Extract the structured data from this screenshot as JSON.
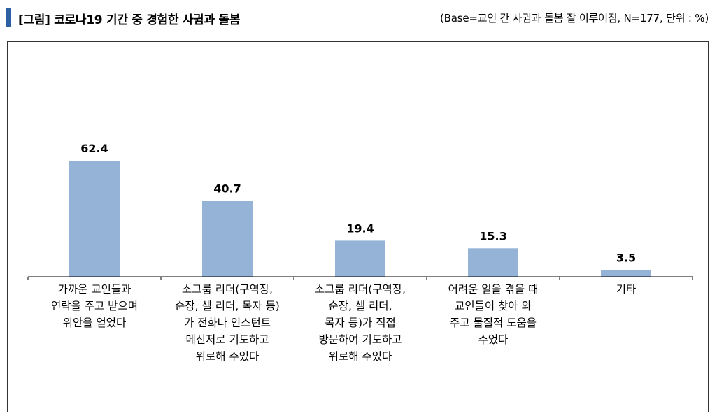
{
  "header": {
    "title": "[그림] 코로나19 기간 중 경험한 사귐과 돌봄",
    "base_note": "(Base=교인 간 사귐과 돌봄 잘 이루어짐, N=177, 단위 : %)"
  },
  "colors": {
    "bar": "#95b3d7",
    "accent": "#2e5fa3",
    "axis": "#000000"
  },
  "chart_data": {
    "type": "bar",
    "title": "[그림] 코로나19 기간 중 경험한 사귐과 돌봄",
    "xlabel": "",
    "ylabel": "",
    "ylim": [
      0,
      70
    ],
    "grid": false,
    "categories": [
      [
        "가까운 교인들과",
        "연락을 주고 받으며",
        "위안을 얻었다"
      ],
      [
        "소그룹 리더(구역장,",
        "순장, 셀 리더, 목자 등)",
        "가 전화나 인스턴트",
        "메신저로 기도하고",
        "위로해 주었다"
      ],
      [
        "소그룹 리더(구역장,",
        "순장, 셀 리더,",
        "목자 등)가 직접",
        "방문하여 기도하고",
        "위로해 주었다"
      ],
      [
        "어려운 일을 겪을 때",
        "교인들이 찾아 와",
        "주고 물질적 도움을",
        "주었다"
      ],
      [
        "기타"
      ]
    ],
    "values": [
      62.4,
      40.7,
      19.4,
      15.3,
      3.5
    ],
    "value_labels": [
      "62.4",
      "40.7",
      "19.4",
      "15.3",
      "3.5"
    ]
  }
}
